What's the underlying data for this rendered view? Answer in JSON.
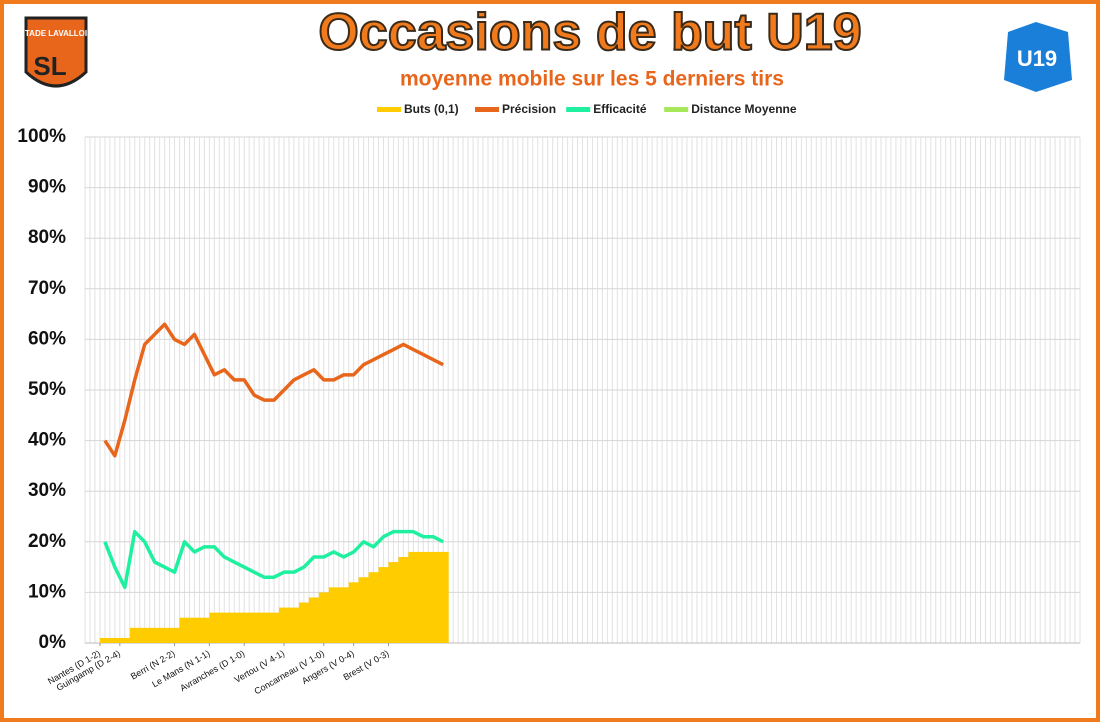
{
  "chart_data": {
    "type": "line",
    "title": "Occasions de but U19",
    "subtitle": "moyenne mobile sur les 5 derniers tirs",
    "logos": {
      "left": "STADE LAVALLOIS",
      "right": "U19"
    },
    "x": [
      4,
      6,
      8,
      10,
      12,
      14,
      16,
      18,
      20,
      22,
      24,
      26,
      28,
      30,
      32,
      34,
      36,
      38,
      40,
      42,
      44,
      46,
      48,
      50,
      52,
      54,
      56,
      58,
      60,
      62,
      64,
      66,
      68,
      70,
      72
    ],
    "xlim": [
      0,
      200
    ],
    "xticks": [
      {
        "value": 3,
        "label": "Nantes (D 1-2)"
      },
      {
        "value": 7,
        "label": "Guingamp (D 2-4)"
      },
      {
        "value": 18,
        "label": "Berri (N 2-2)"
      },
      {
        "value": 25,
        "label": "Le Mans (N 1-1)"
      },
      {
        "value": 32,
        "label": "Avranches (D 1-0)"
      },
      {
        "value": 40,
        "label": "Vertou (V 4-1)"
      },
      {
        "value": 48,
        "label": "Concarneau (V 1-0)"
      },
      {
        "value": 54,
        "label": "Angers (V 0-4)"
      },
      {
        "value": 61,
        "label": "Brest (V 0-3)"
      }
    ],
    "ylim": [
      0,
      100
    ],
    "yticks": [
      {
        "value": 0,
        "label": "0%"
      },
      {
        "value": 10,
        "label": "10%"
      },
      {
        "value": 20,
        "label": "20%"
      },
      {
        "value": 30,
        "label": "30%"
      },
      {
        "value": 40,
        "label": "40%"
      },
      {
        "value": 50,
        "label": "50%"
      },
      {
        "value": 60,
        "label": "60%"
      },
      {
        "value": 70,
        "label": "70%"
      },
      {
        "value": 80,
        "label": "80%"
      },
      {
        "value": 90,
        "label": "90%"
      },
      {
        "value": 100,
        "label": "100%"
      }
    ],
    "grid": true,
    "legend": "top",
    "series": [
      {
        "name": "Buts (0,1)",
        "color": "#ffcc00",
        "kind": "area",
        "values": [
          1,
          1,
          1,
          3,
          3,
          3,
          3,
          3,
          5,
          5,
          5,
          6,
          6,
          6,
          6,
          6,
          6,
          6,
          7,
          7,
          8,
          9,
          10,
          11,
          11,
          12,
          13,
          14,
          15,
          16,
          17,
          18,
          18,
          18,
          18
        ]
      },
      {
        "name": "Précision",
        "color": "#e8661c",
        "kind": "line",
        "values": [
          40,
          37,
          44,
          52,
          59,
          61,
          63,
          60,
          59,
          61,
          57,
          53,
          54,
          52,
          52,
          49,
          48,
          48,
          50,
          52,
          53,
          54,
          52,
          52,
          53,
          53,
          55,
          56,
          57,
          58,
          59,
          58,
          57,
          56,
          55
        ]
      },
      {
        "name": "Efficacité",
        "color": "#1ef0a0",
        "kind": "line",
        "values": [
          20,
          15,
          11,
          22,
          20,
          16,
          15,
          14,
          20,
          18,
          19,
          19,
          17,
          16,
          15,
          14,
          13,
          13,
          14,
          14,
          15,
          17,
          17,
          18,
          17,
          18,
          20,
          19,
          21,
          22,
          22,
          22,
          21,
          21,
          20
        ]
      },
      {
        "name": "Distance Moyenne",
        "color": "#a6e85a",
        "kind": "line",
        "values": [
          null,
          null,
          null,
          null,
          null,
          null,
          null,
          null,
          null,
          null,
          null,
          null,
          null,
          null,
          null,
          null,
          null,
          null,
          null,
          null,
          null,
          null,
          null,
          null,
          null,
          null,
          null,
          null,
          null,
          null,
          null,
          null,
          null,
          null,
          null
        ]
      }
    ]
  }
}
